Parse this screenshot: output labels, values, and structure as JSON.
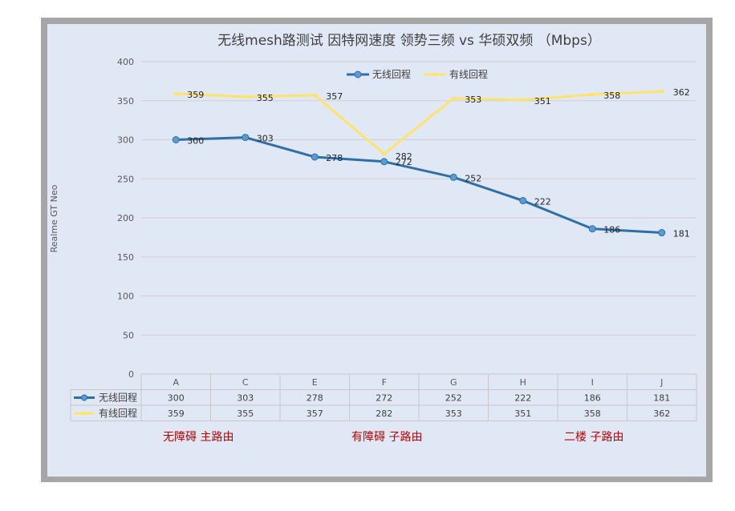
{
  "chart_data": {
    "type": "line",
    "title": "无线mesh路测试 因特网速度 领势三频 vs 华硕双频 （Mbps）",
    "ylabel": "Realme GT Neo",
    "xlabel": "",
    "categories": [
      "A",
      "C",
      "E",
      "F",
      "G",
      "H",
      "I",
      "J"
    ],
    "ylim": [
      0,
      400
    ],
    "yticks": [
      "0",
      "50",
      "100",
      "150",
      "200",
      "250",
      "300",
      "350",
      "400"
    ],
    "grid": true,
    "legend_position": "top",
    "data_table": true,
    "series": [
      {
        "name": "无线回程",
        "color": "#2e6fa8",
        "values": [
          300,
          303,
          278,
          272,
          252,
          222,
          186,
          181
        ]
      },
      {
        "name": "有线回程",
        "color": "#ffe36b",
        "values": [
          359,
          355,
          357,
          282,
          353,
          351,
          358,
          362
        ]
      }
    ]
  },
  "annotations": [
    {
      "text": "无障碍  主路由"
    },
    {
      "text": "有障碍   子路由"
    },
    {
      "text": "二楼 子路由"
    }
  ]
}
